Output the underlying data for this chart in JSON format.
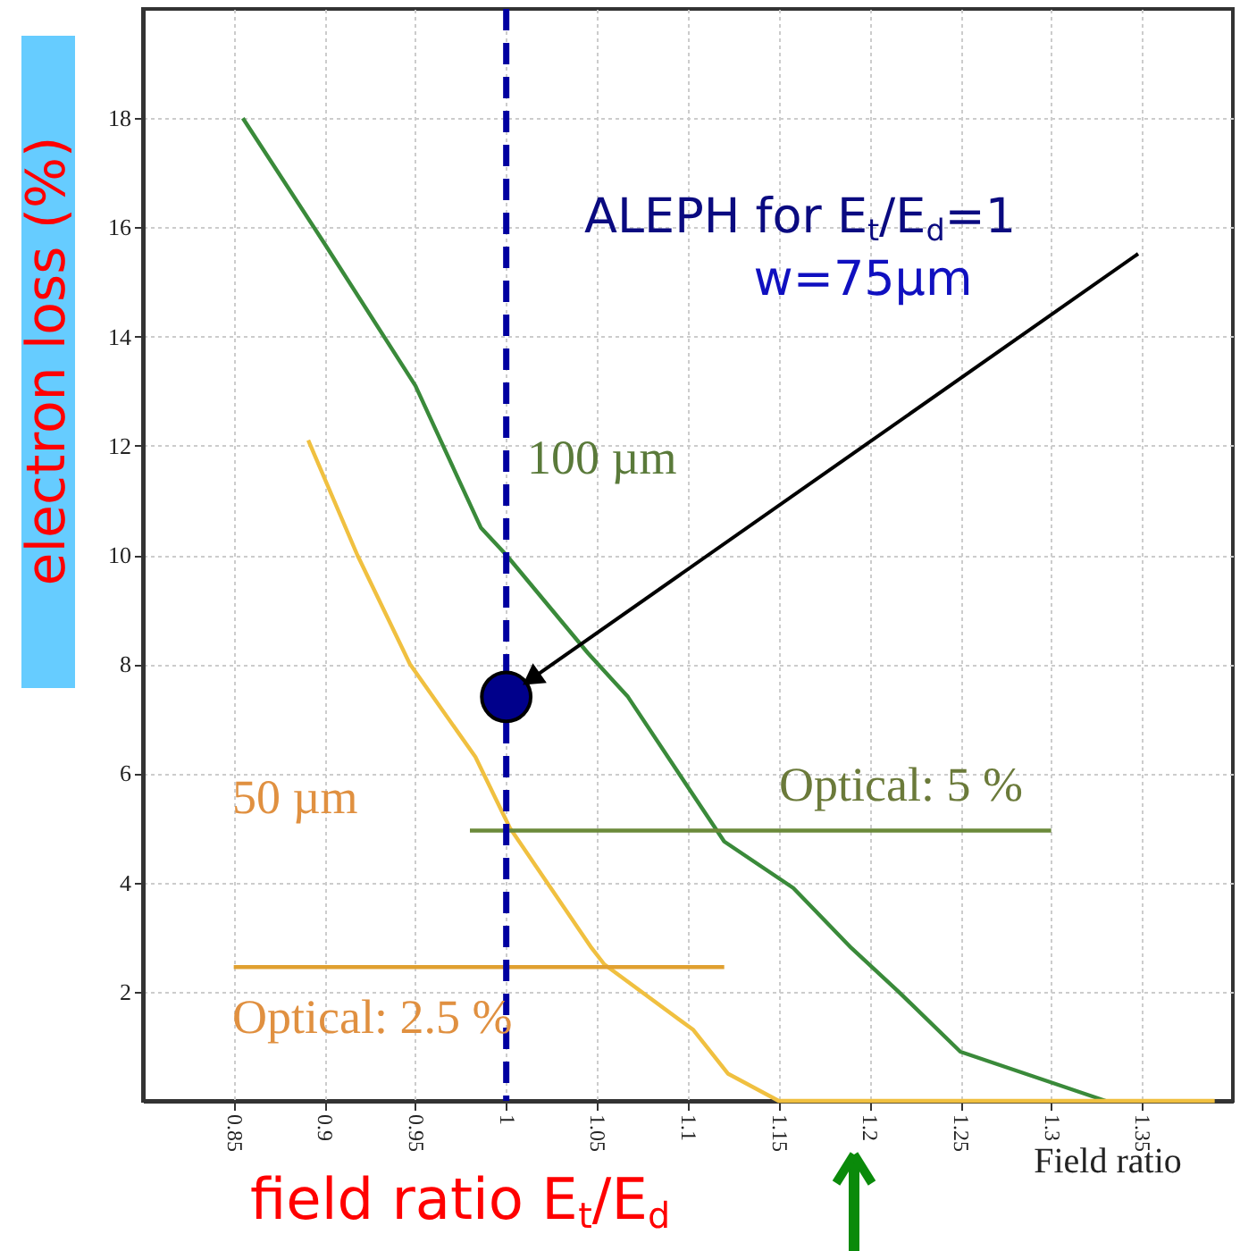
{
  "chart_data": {
    "type": "line",
    "xlabel": "field ratio E$_{t}$/E$_{d}$",
    "ylabel": "electron loss (%)",
    "xlim": [
      0.8,
      1.4
    ],
    "xticks": [
      0.85,
      0.9,
      0.95,
      1,
      1.05,
      1.1,
      1.15,
      1.2,
      1.25,
      1.3,
      1.35
    ],
    "ylim": [
      0,
      20
    ],
    "yticks": [
      2,
      4,
      6,
      8,
      10,
      12,
      14,
      16,
      18
    ],
    "grid": true,
    "line_style": "solid",
    "marker": "none",
    "series": [
      {
        "color": "#3a8a3a",
        "x": [
          0.855,
          0.9,
          0.95,
          0.986,
          1.0,
          1.045,
          1.067,
          1.12,
          1.158,
          1.19,
          1.216,
          1.25,
          1.29,
          1.33
        ],
        "values": [
          18.0,
          15.7,
          13.1,
          10.5,
          10.0,
          8.2,
          7.4,
          4.75,
          3.9,
          2.8,
          2.0,
          0.9,
          0.45,
          0
        ]
      },
      {
        "color": "#f0c040",
        "x": [
          0.891,
          0.918,
          0.947,
          0.983,
          1.002,
          1.047,
          1.054,
          1.103,
          1.122,
          1.15,
          1.39
        ],
        "values": [
          12.1,
          10.0,
          8.0,
          6.3,
          5.0,
          2.8,
          2.5,
          1.3,
          0.5,
          0,
          0
        ]
      },
      {
        "color": "#6b8a3a",
        "x": [
          0.98,
          1.3
        ],
        "values": [
          4.95,
          4.95
        ]
      },
      {
        "color": "#e0a030",
        "x": [
          0.85,
          1.12
        ],
        "values": [
          2.45,
          2.45
        ]
      },
      {
        "type": "scatter",
        "marker": "circle",
        "color": "#00008b",
        "x": [
          1.0
        ],
        "values": [
          7.4
        ]
      }
    ],
    "ref_lines": [
      {
        "axis": "x",
        "value": 1,
        "color": "#0000a0",
        "line_style": "dashed"
      }
    ],
    "annotations": [
      "100 µm",
      "50 µm",
      "Optical: 5 %",
      "Optical: 2.5 %",
      "ALEPH for E$_{t}$/E$_{d}$=1",
      "w=75µm",
      "Field ratio"
    ]
  }
}
